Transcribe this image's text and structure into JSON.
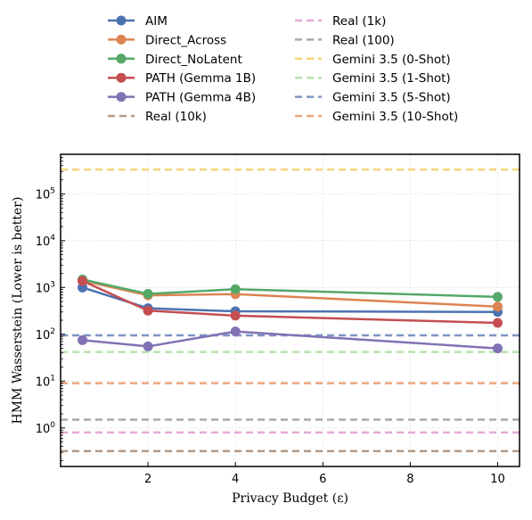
{
  "chart_data": {
    "type": "line",
    "xlabel": "Privacy Budget (ε)",
    "ylabel": "HMM Wasserstein (Lower is better)",
    "xlim": [
      0,
      10.5
    ],
    "ylim": [
      0.15,
      700000
    ],
    "yscale": "log",
    "xticks": [
      2,
      4,
      6,
      8,
      10
    ],
    "yticks": [
      {
        "value": 1,
        "base": "10",
        "exp": "0"
      },
      {
        "value": 10,
        "base": "10",
        "exp": "1"
      },
      {
        "value": 100,
        "base": "10",
        "exp": "2"
      },
      {
        "value": 1000,
        "base": "10",
        "exp": "3"
      },
      {
        "value": 10000,
        "base": "10",
        "exp": "4"
      },
      {
        "value": 100000,
        "base": "10",
        "exp": "5"
      }
    ],
    "grid": true,
    "legend_position": "top",
    "x": [
      0.5,
      2,
      4,
      10
    ],
    "series": [
      {
        "name": "AIM",
        "kind": "line",
        "color": "#4c72b0",
        "values": [
          1000,
          360,
          310,
          300
        ]
      },
      {
        "name": "Direct_Across",
        "kind": "line",
        "color": "#dd8452",
        "values": [
          1400,
          680,
          720,
          390
        ]
      },
      {
        "name": "Direct_NoLatent",
        "kind": "line",
        "color": "#55a868",
        "values": [
          1480,
          730,
          920,
          630
        ]
      },
      {
        "name": "PATH (Gemma 1B)",
        "kind": "line",
        "color": "#c44e52",
        "values": [
          1380,
          320,
          250,
          175
        ]
      },
      {
        "name": "PATH (Gemma 4B)",
        "kind": "line",
        "color": "#8172b3",
        "values": [
          75,
          55,
          115,
          50
        ]
      },
      {
        "name": "Real (10k)",
        "kind": "hline",
        "color": "#b49a86",
        "value": 0.32
      },
      {
        "name": "Real (1k)",
        "kind": "hline",
        "color": "#e7a9d7",
        "value": 0.8
      },
      {
        "name": "Real (100)",
        "kind": "hline",
        "color": "#a9a9a9",
        "value": 1.5
      },
      {
        "name": "Gemini 3.5 (0-Shot)",
        "kind": "hline",
        "color": "#f6d47a",
        "value": 330000
      },
      {
        "name": "Gemini 3.5 (1-Shot)",
        "kind": "hline",
        "color": "#b6e3ad",
        "value": 42
      },
      {
        "name": "Gemini 3.5 (5-Shot)",
        "kind": "hline",
        "color": "#7f95c5",
        "value": 95
      },
      {
        "name": "Gemini 3.5 (10-Shot)",
        "kind": "hline",
        "color": "#eba77c",
        "value": 9
      }
    ]
  }
}
